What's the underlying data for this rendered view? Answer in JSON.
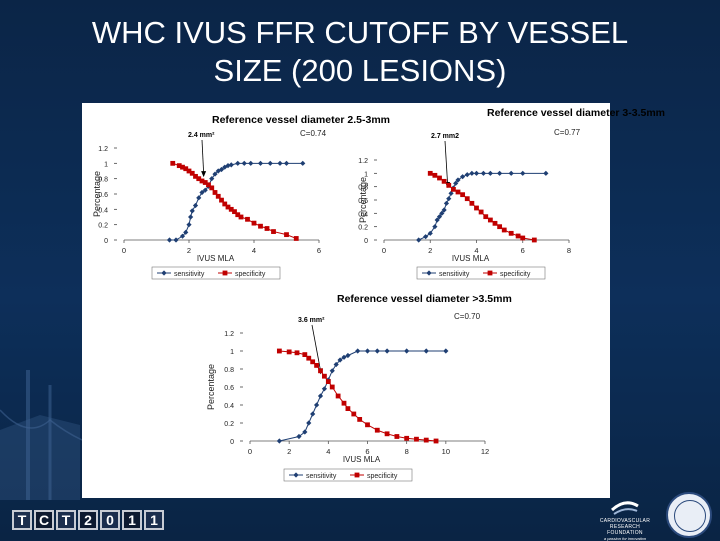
{
  "slide": {
    "title_line1": "WHC IVUS FFR CUTOFF BY VESSEL",
    "title_line2": "SIZE (200 LESIONS)",
    "logo_letters": [
      "T",
      "C",
      "T",
      "2",
      "0",
      "1",
      "1"
    ],
    "footer_org_line1": "CARDIOVASCULAR RESEARCH FOUNDATION",
    "footer_org_line2": "a passion for innovation"
  },
  "colors": {
    "background": "#0d2f5a",
    "sensitivity": "#1f3f73",
    "specificity": "#c00000"
  },
  "chart_data": [
    {
      "type": "line",
      "title": "Reference vessel diameter 2.5-3mm",
      "xlabel": "IVUS MLA",
      "ylabel": "Percentage",
      "annotation": "2.4 mm²",
      "c_stat": "C=0.74",
      "xlim": [
        0,
        6
      ],
      "ylim": [
        0,
        1.2
      ],
      "xticks": [
        "0",
        "2",
        "4",
        "6"
      ],
      "yticks": [
        "0",
        "0.2",
        "0.4",
        "0.6",
        "0.8",
        "1",
        "1.2"
      ],
      "legend": [
        "sensitivity",
        "specificity"
      ],
      "series": [
        {
          "name": "sensitivity",
          "marker": "diamond",
          "x": [
            1.4,
            1.6,
            1.8,
            1.9,
            2.0,
            2.05,
            2.1,
            2.2,
            2.3,
            2.4,
            2.5,
            2.6,
            2.7,
            2.8,
            2.9,
            3.0,
            3.1,
            3.2,
            3.3,
            3.5,
            3.7,
            3.9,
            4.2,
            4.5,
            4.8,
            5.0,
            5.5
          ],
          "y": [
            0.0,
            0.0,
            0.05,
            0.1,
            0.2,
            0.3,
            0.38,
            0.45,
            0.55,
            0.62,
            0.65,
            0.7,
            0.8,
            0.86,
            0.9,
            0.92,
            0.95,
            0.97,
            0.98,
            1.0,
            1.0,
            1.0,
            1.0,
            1.0,
            1.0,
            1.0,
            1.0
          ]
        },
        {
          "name": "specificity",
          "marker": "square",
          "x": [
            1.5,
            1.7,
            1.8,
            1.9,
            2.0,
            2.1,
            2.2,
            2.3,
            2.4,
            2.5,
            2.6,
            2.7,
            2.8,
            2.9,
            3.0,
            3.1,
            3.2,
            3.3,
            3.4,
            3.5,
            3.6,
            3.8,
            4.0,
            4.2,
            4.4,
            4.6,
            5.0,
            5.3
          ],
          "y": [
            1.0,
            0.97,
            0.95,
            0.93,
            0.9,
            0.87,
            0.83,
            0.8,
            0.77,
            0.75,
            0.72,
            0.68,
            0.62,
            0.57,
            0.52,
            0.47,
            0.43,
            0.4,
            0.37,
            0.33,
            0.3,
            0.27,
            0.22,
            0.18,
            0.15,
            0.11,
            0.07,
            0.02
          ]
        }
      ]
    },
    {
      "type": "line",
      "title": "Reference vessel diameter 3-3.5mm",
      "xlabel": "IVUS MLA",
      "ylabel": "Percentage",
      "annotation": "2.7 mm2",
      "c_stat": "C=0.77",
      "xlim": [
        0,
        8
      ],
      "ylim": [
        0,
        1.2
      ],
      "xticks": [
        "0",
        "2",
        "4",
        "6",
        "8"
      ],
      "yticks": [
        "0",
        "0.2",
        "0.4",
        "0.6",
        "0.8",
        "1",
        "1.2"
      ],
      "legend": [
        "sensitivity",
        "specificity"
      ],
      "series": [
        {
          "name": "sensitivity",
          "marker": "diamond",
          "x": [
            1.5,
            1.8,
            2.0,
            2.2,
            2.3,
            2.4,
            2.5,
            2.6,
            2.7,
            2.8,
            2.9,
            3.0,
            3.1,
            3.2,
            3.4,
            3.6,
            3.8,
            4.0,
            4.3,
            4.6,
            5.0,
            5.5,
            6.0,
            7.0
          ],
          "y": [
            0.0,
            0.05,
            0.1,
            0.2,
            0.3,
            0.35,
            0.4,
            0.45,
            0.55,
            0.62,
            0.7,
            0.78,
            0.85,
            0.9,
            0.95,
            0.98,
            1.0,
            1.0,
            1.0,
            1.0,
            1.0,
            1.0,
            1.0,
            1.0
          ]
        },
        {
          "name": "specificity",
          "marker": "square",
          "x": [
            2.0,
            2.2,
            2.4,
            2.6,
            2.8,
            3.0,
            3.2,
            3.4,
            3.6,
            3.8,
            4.0,
            4.2,
            4.4,
            4.6,
            4.8,
            5.0,
            5.2,
            5.5,
            5.8,
            6.0,
            6.5
          ],
          "y": [
            1.0,
            0.97,
            0.93,
            0.88,
            0.82,
            0.76,
            0.72,
            0.68,
            0.62,
            0.55,
            0.48,
            0.42,
            0.35,
            0.3,
            0.25,
            0.2,
            0.15,
            0.1,
            0.06,
            0.03,
            0.0
          ]
        }
      ]
    },
    {
      "type": "line",
      "title": "Reference vessel diameter >3.5mm",
      "xlabel": "IVUS MLA",
      "ylabel": "Percentage",
      "annotation": "3.6 mm²",
      "c_stat": "C=0.70",
      "xlim": [
        0,
        12
      ],
      "ylim": [
        0,
        1.2
      ],
      "xticks": [
        "0",
        "2",
        "4",
        "6",
        "8",
        "10",
        "12"
      ],
      "yticks": [
        "0",
        "0.2",
        "0.4",
        "0.6",
        "0.8",
        "1",
        "1.2"
      ],
      "legend": [
        "sensitivity",
        "specificity"
      ],
      "series": [
        {
          "name": "sensitivity",
          "marker": "diamond",
          "x": [
            1.5,
            2.5,
            2.8,
            3.0,
            3.2,
            3.4,
            3.6,
            3.8,
            4.0,
            4.2,
            4.4,
            4.6,
            4.8,
            5.0,
            5.5,
            6.0,
            6.5,
            7.0,
            8.0,
            9.0,
            10.0
          ],
          "y": [
            0.0,
            0.05,
            0.1,
            0.2,
            0.3,
            0.4,
            0.5,
            0.58,
            0.68,
            0.78,
            0.85,
            0.9,
            0.93,
            0.95,
            1.0,
            1.0,
            1.0,
            1.0,
            1.0,
            1.0,
            1.0
          ]
        },
        {
          "name": "specificity",
          "marker": "square",
          "x": [
            1.5,
            2.0,
            2.4,
            2.8,
            3.0,
            3.2,
            3.4,
            3.6,
            3.8,
            4.0,
            4.2,
            4.5,
            4.8,
            5.0,
            5.3,
            5.6,
            6.0,
            6.5,
            7.0,
            7.5,
            8.0,
            8.5,
            9.0,
            9.5
          ],
          "y": [
            1.0,
            0.99,
            0.98,
            0.96,
            0.92,
            0.88,
            0.84,
            0.78,
            0.72,
            0.66,
            0.6,
            0.5,
            0.42,
            0.36,
            0.3,
            0.24,
            0.18,
            0.12,
            0.08,
            0.05,
            0.03,
            0.02,
            0.01,
            0.0
          ]
        }
      ]
    }
  ]
}
